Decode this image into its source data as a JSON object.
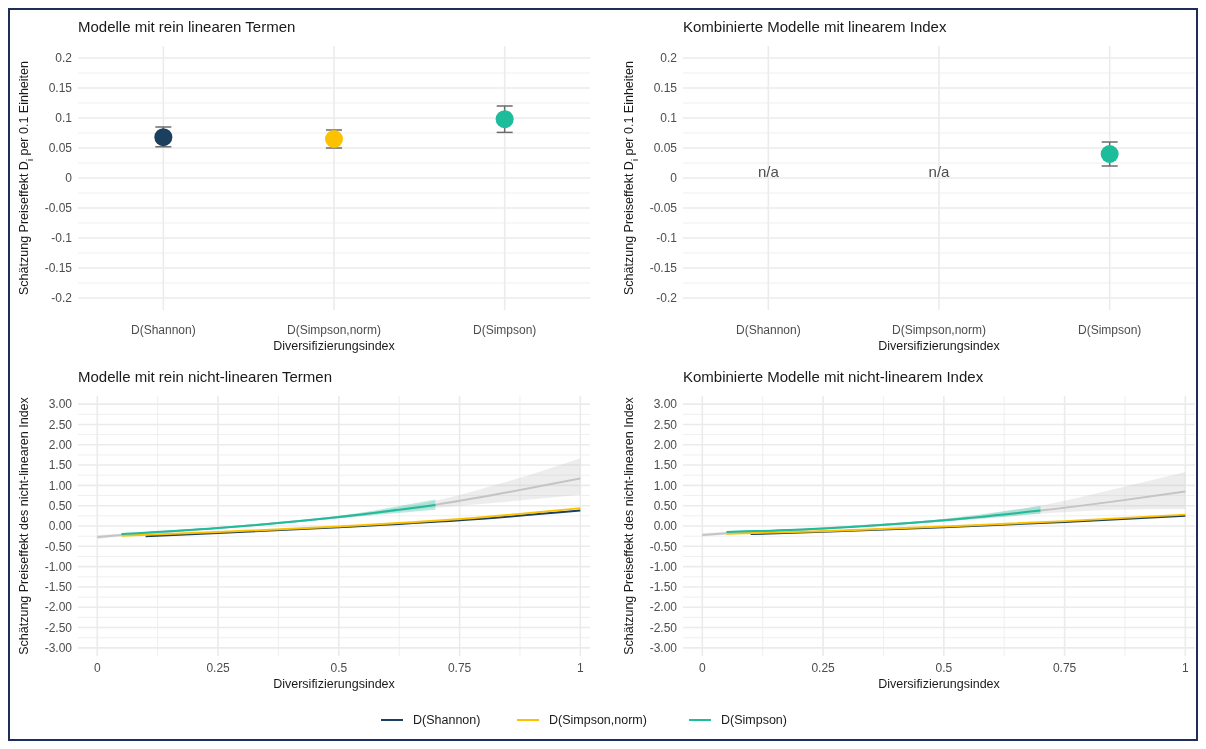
{
  "chart_data": [
    {
      "type": "scatter",
      "title": "Modelle mit rein linearen Termen",
      "xlabel": "Diversifizierungsindex",
      "ylabel": "Schätzung Preiseffekt  D$_{i}$ per 0.1 Einheiten",
      "categories": [
        "D(Shannon)",
        "D(Simpson,norm)",
        "D(Simpson)"
      ],
      "values": [
        0.068,
        0.065,
        0.098
      ],
      "colors": [
        "#1b3f5e",
        "#fcc200",
        "#1dbc9a"
      ],
      "errors": [
        [
          0.052,
          0.085
        ],
        [
          0.05,
          0.08
        ],
        [
          0.076,
          0.12
        ]
      ],
      "ylim": [
        -0.22,
        0.22
      ],
      "yticks": [
        -0.2,
        -0.15,
        -0.1,
        -0.05,
        0,
        0.05,
        0.1,
        0.15,
        0.2
      ],
      "grid": true,
      "marker": "circle"
    },
    {
      "type": "scatter",
      "title": "Kombinierte Modelle mit linearem Index",
      "xlabel": "Diversifizierungsindex",
      "ylabel": "Schätzung Preiseffekt  D$_{i}$ per 0.1 Einheiten",
      "categories": [
        "D(Shannon)",
        "D(Simpson,norm)",
        "D(Simpson)"
      ],
      "values": [
        null,
        null,
        0.04
      ],
      "colors": [
        null,
        null,
        "#1dbc9a"
      ],
      "errors": [
        null,
        null,
        [
          0.02,
          0.06
        ]
      ],
      "annotations": [
        "n/a",
        "n/a"
      ],
      "ylim": [
        -0.22,
        0.22
      ],
      "yticks": [
        -0.2,
        -0.15,
        -0.1,
        -0.05,
        0,
        0.05,
        0.1,
        0.15,
        0.2
      ],
      "grid": true,
      "marker": "circle"
    },
    {
      "type": "line",
      "title": "Modelle mit rein nicht-linearen Termen",
      "xlabel": "Diversifizierungsindex",
      "ylabel": "Schätzung Preiseffekt des nicht-linearen Index",
      "series": [
        {
          "color": "#c4c4c4",
          "x": [
            0,
            0.05,
            0.25,
            0.5,
            0.7,
            0.85,
            1
          ],
          "values": [
            -0.27,
            -0.22,
            -0.05,
            0.22,
            0.52,
            0.83,
            1.17
          ],
          "lower": [
            -0.32,
            -0.25,
            -0.07,
            0.19,
            0.45,
            0.6,
            0.77
          ],
          "upper": [
            -0.22,
            -0.19,
            -0.03,
            0.25,
            0.62,
            1.1,
            1.67
          ]
        },
        {
          "color": "#1b3f5e",
          "x": [
            0.1,
            0.25,
            0.5,
            0.75,
            1
          ],
          "values": [
            -0.25,
            -0.17,
            -0.03,
            0.14,
            0.38
          ]
        },
        {
          "color": "#fcc200",
          "x": [
            0.05,
            0.25,
            0.5,
            0.75,
            1
          ],
          "values": [
            -0.24,
            -0.15,
            -0.01,
            0.17,
            0.44
          ]
        },
        {
          "color": "#1dbc9a",
          "x": [
            0.05,
            0.25,
            0.5,
            0.7
          ],
          "values": [
            -0.2,
            -0.05,
            0.22,
            0.52
          ],
          "lower": [
            -0.22,
            -0.07,
            0.19,
            0.4
          ],
          "upper": [
            -0.18,
            -0.03,
            0.25,
            0.65
          ]
        }
      ],
      "xlim": [
        -0.04,
        1.02
      ],
      "xticks": [
        0,
        0.25,
        0.5,
        0.75,
        1
      ],
      "ylim": [
        -3.2,
        3.2
      ],
      "yticks": [
        {
          "value": -3,
          "label": "-3.00"
        },
        {
          "value": -2.5,
          "label": "-2.50"
        },
        {
          "value": -2,
          "label": "-2.00"
        },
        {
          "value": -1.5,
          "label": "-1.50"
        },
        {
          "value": -1,
          "label": "-1.00"
        },
        {
          "value": -0.5,
          "label": "-0.50"
        },
        {
          "value": 0,
          "label": "0.00"
        },
        {
          "value": 0.5,
          "label": "0.50"
        },
        {
          "value": 1,
          "label": "1.00"
        },
        {
          "value": 1.5,
          "label": "1.50"
        },
        {
          "value": 2,
          "label": "2.00"
        },
        {
          "value": 2.5,
          "label": "2.50"
        },
        {
          "value": 3,
          "label": "3.00"
        }
      ],
      "grid": true
    },
    {
      "type": "line",
      "title": "Kombinierte Modelle mit nicht-linearem Index",
      "xlabel": "Diversifizierungsindex",
      "ylabel": "Schätzung Preiseffekt des nicht-linearen Index",
      "series": [
        {
          "color": "#c4c4c4",
          "x": [
            0,
            0.05,
            0.25,
            0.5,
            0.7,
            0.85,
            1
          ],
          "values": [
            -0.22,
            -0.18,
            -0.06,
            0.14,
            0.38,
            0.6,
            0.85
          ],
          "lower": [
            -0.26,
            -0.21,
            -0.08,
            0.11,
            0.3,
            0.4,
            0.42
          ],
          "upper": [
            -0.18,
            -0.15,
            -0.04,
            0.17,
            0.5,
            0.9,
            1.33
          ]
        },
        {
          "name": "D(Shannon)",
          "color": "#1b3f5e",
          "x": [
            0.1,
            0.25,
            0.5,
            0.75,
            1
          ],
          "values": [
            -0.2,
            -0.14,
            -0.03,
            0.1,
            0.25
          ]
        },
        {
          "name": "D(Simpson,norm)",
          "color": "#fcc200",
          "x": [
            0.05,
            0.25,
            0.5,
            0.75,
            1
          ],
          "values": [
            -0.19,
            -0.13,
            -0.01,
            0.12,
            0.28
          ]
        },
        {
          "name": "D(Simpson)",
          "color": "#1dbc9a",
          "x": [
            0.05,
            0.25,
            0.5,
            0.7
          ],
          "values": [
            -0.15,
            -0.06,
            0.14,
            0.38
          ],
          "lower": [
            -0.17,
            -0.08,
            0.11,
            0.3
          ],
          "upper": [
            -0.13,
            -0.04,
            0.17,
            0.5
          ]
        }
      ],
      "xlim": [
        -0.04,
        1.02
      ],
      "xticks": [
        0,
        0.25,
        0.5,
        0.75,
        1
      ],
      "ylim": [
        -3.2,
        3.2
      ],
      "yticks": [
        {
          "value": -3,
          "label": "-3.00"
        },
        {
          "value": -2.5,
          "label": "-2.50"
        },
        {
          "value": -2,
          "label": "-2.00"
        },
        {
          "value": -1.5,
          "label": "-1.50"
        },
        {
          "value": -1,
          "label": "-1.00"
        },
        {
          "value": -0.5,
          "label": "-0.50"
        },
        {
          "value": 0,
          "label": "0.00"
        },
        {
          "value": 0.5,
          "label": "0.50"
        },
        {
          "value": 1,
          "label": "1.00"
        },
        {
          "value": 1.5,
          "label": "1.50"
        },
        {
          "value": 2,
          "label": "2.00"
        },
        {
          "value": 2.5,
          "label": "2.50"
        },
        {
          "value": 3,
          "label": "3.00"
        }
      ],
      "grid": true,
      "legend": "bottom"
    }
  ]
}
